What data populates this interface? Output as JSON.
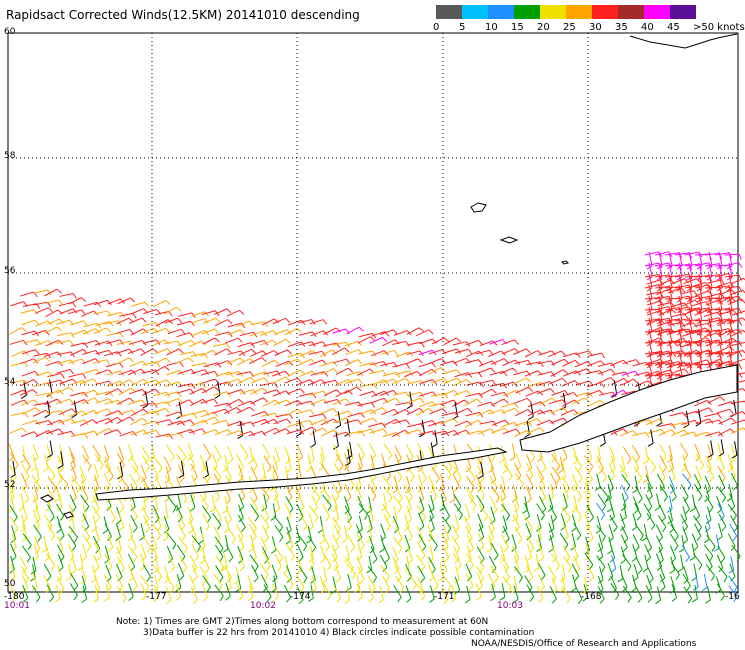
{
  "title": "Rapidsact Corrected Winds(12.5KM) 20141010 descending",
  "legend": {
    "colors": [
      "#595959",
      "#00bfff",
      "#1e90ff",
      "#00a000",
      "#f2e000",
      "#ffa500",
      "#ff2020",
      "#a52a2a",
      "#ff00ff",
      "#5b0f99"
    ],
    "labels": [
      "0",
      "5",
      "10",
      "15",
      "20",
      "25",
      "30",
      "35",
      "40",
      "45",
      ">50 knots"
    ]
  },
  "lat_labels": [
    "60",
    "58",
    "56",
    "54",
    "52",
    "50"
  ],
  "lon_labels": [
    "-180",
    "-177",
    "-174",
    "-171",
    "-168",
    "-16"
  ],
  "time_labels": [
    "10:01",
    "10:02",
    "10:03"
  ],
  "notes": {
    "line1": "Note: 1) Times are GMT 2)Times along bottom correspond to measurement at 60N",
    "line2": "3)Data buffer is 22 hrs from 20141010 4) Black circles indicate possible contamination"
  },
  "credit": "NOAA/NESDIS/Office of Research and Applications"
}
